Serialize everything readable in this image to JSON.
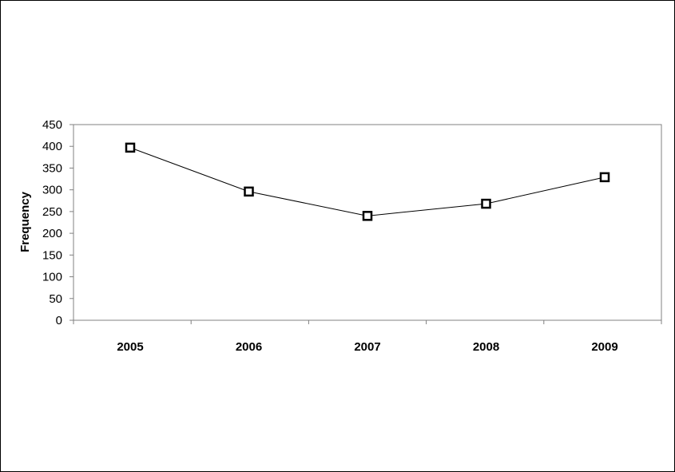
{
  "chart_data": {
    "type": "line",
    "title": "",
    "xlabel": "",
    "ylabel": "Frequency",
    "categories": [
      "2005",
      "2006",
      "2007",
      "2008",
      "2009"
    ],
    "series": [
      {
        "values": [
          397,
          296,
          240,
          268,
          329
        ]
      }
    ],
    "ylim": [
      0,
      450
    ],
    "yticks": [
      0,
      50,
      100,
      150,
      200,
      250,
      300,
      350,
      400,
      450
    ],
    "grid": false,
    "legend": "none",
    "colors": {
      "line": "#000000",
      "marker_fill": "#ffffff",
      "plot_border": "#808080"
    }
  }
}
